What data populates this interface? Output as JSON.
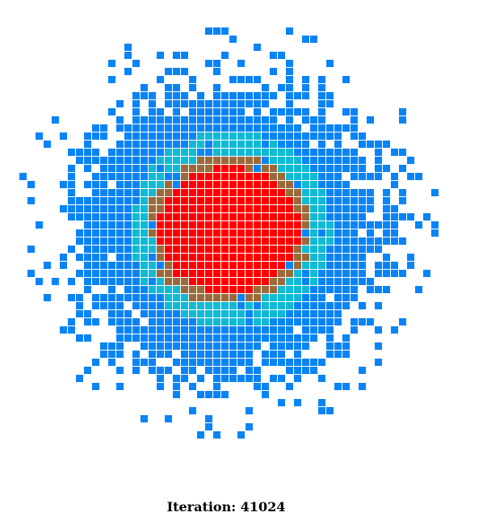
{
  "iteration_label": "Iteration: 41024",
  "colors": {
    "level_1": "#0a84f5",
    "level_2": "#10b9d4",
    "level_3": "#9a6a3a",
    "level_4": "#ff0000",
    "background": "#ffffff"
  },
  "cloud": {
    "core_level": 4,
    "levels": 4,
    "description_hidden": ""
  }
}
